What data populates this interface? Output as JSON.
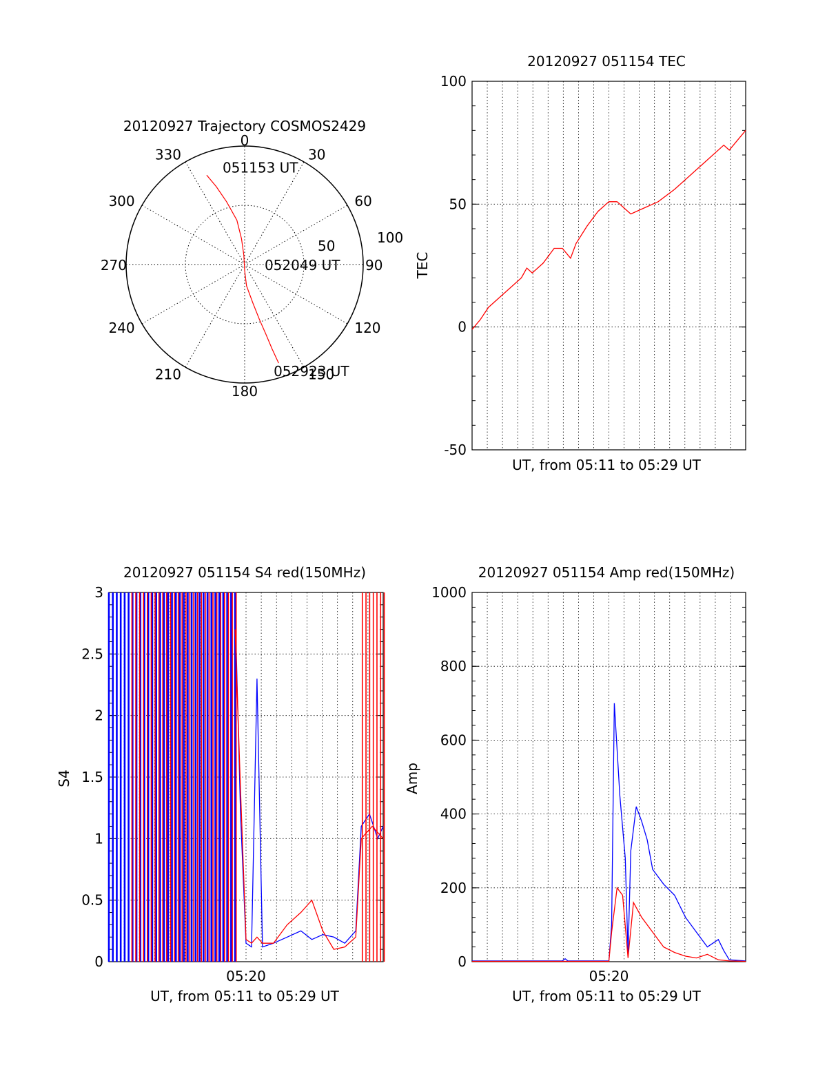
{
  "colors": {
    "red": "#ff0000",
    "blue": "#0000ff",
    "axis": "#000000",
    "grid": "#000000"
  },
  "chart_data": [
    {
      "id": "trajectory",
      "type": "polar",
      "title": "20120927 Trajectory COSMOS2429",
      "azimuth_labels": [
        "0",
        "30",
        "60",
        "90",
        "120",
        "150",
        "180",
        "210",
        "240",
        "270",
        "300",
        "330"
      ],
      "azimuth_values": [
        0,
        30,
        60,
        90,
        120,
        150,
        180,
        210,
        240,
        270,
        300,
        330
      ],
      "radial_labels": [
        "50",
        "100"
      ],
      "radial_values": [
        50,
        100
      ],
      "grid": true,
      "track": {
        "color": "#ff0000",
        "points": [
          [
            337,
            82
          ],
          [
            340,
            70
          ],
          [
            344,
            55
          ],
          [
            350,
            38
          ],
          [
            353,
            22
          ],
          [
            355,
            8
          ],
          [
            180,
            5
          ],
          [
            175,
            18
          ],
          [
            168,
            33
          ],
          [
            165,
            48
          ],
          [
            163,
            62
          ],
          [
            162,
            75
          ],
          [
            161,
            88
          ]
        ]
      },
      "annotations": [
        {
          "text": "051153 UT",
          "az": 348,
          "el": 84
        },
        {
          "text": "052049 UT",
          "az": 90,
          "el": 18
        },
        {
          "text": "052923 UT",
          "az": 164,
          "el": 93
        }
      ]
    },
    {
      "id": "tec",
      "type": "line",
      "title": "20120927 051154 TEC",
      "xlabel": "UT, from 05:11 to 05:29 UT",
      "ylabel": "TEC",
      "xlim": [
        0,
        1
      ],
      "ylim": [
        -50,
        100
      ],
      "yticks": [
        "-50",
        "0",
        "50",
        "100"
      ],
      "ytick_values": [
        -50,
        0,
        50,
        100
      ],
      "xticklabels": [],
      "grid": true,
      "series": [
        {
          "color": "#ff0000",
          "points": [
            [
              0.0,
              -1
            ],
            [
              0.03,
              3
            ],
            [
              0.06,
              8
            ],
            [
              0.1,
              12
            ],
            [
              0.14,
              16
            ],
            [
              0.18,
              20
            ],
            [
              0.2,
              24
            ],
            [
              0.22,
              22
            ],
            [
              0.26,
              26
            ],
            [
              0.3,
              32
            ],
            [
              0.33,
              32
            ],
            [
              0.36,
              28
            ],
            [
              0.38,
              34
            ],
            [
              0.42,
              41
            ],
            [
              0.46,
              47
            ],
            [
              0.5,
              51
            ],
            [
              0.53,
              51
            ],
            [
              0.56,
              48
            ],
            [
              0.58,
              46
            ],
            [
              0.62,
              48
            ],
            [
              0.68,
              51
            ],
            [
              0.74,
              56
            ],
            [
              0.8,
              62
            ],
            [
              0.86,
              68
            ],
            [
              0.92,
              74
            ],
            [
              0.94,
              72
            ],
            [
              0.97,
              76
            ],
            [
              1.0,
              80
            ]
          ]
        }
      ]
    },
    {
      "id": "s4",
      "type": "line",
      "title": "20120927 051154 S4 red(150MHz)",
      "xlabel": "UT, from 05:11 to 05:29 UT",
      "ylabel": "S4",
      "xlim": [
        0,
        1
      ],
      "ylim": [
        0,
        3
      ],
      "yticks": [
        "0",
        "0.5",
        "1",
        "1.5",
        "2",
        "2.5",
        "3"
      ],
      "ytick_values": [
        0,
        0.5,
        1,
        1.5,
        2,
        2.5,
        3
      ],
      "xticklabels": [
        "05:20"
      ],
      "xtick_values": [
        0.5
      ],
      "grid": true,
      "series": [
        {
          "name_hidden": "",
          "color": "#0000ff",
          "spikes": [
            [
              0.0,
              0.46
            ]
          ],
          "points": [
            [
              0.46,
              2.9
            ],
            [
              0.48,
              1.2
            ],
            [
              0.5,
              0.15
            ],
            [
              0.52,
              0.12
            ],
            [
              0.54,
              2.3
            ],
            [
              0.56,
              0.12
            ],
            [
              0.6,
              0.15
            ],
            [
              0.65,
              0.2
            ],
            [
              0.7,
              0.25
            ],
            [
              0.74,
              0.18
            ],
            [
              0.78,
              0.22
            ],
            [
              0.82,
              0.2
            ],
            [
              0.86,
              0.15
            ],
            [
              0.9,
              0.25
            ],
            [
              0.92,
              1.1
            ],
            [
              0.95,
              1.2
            ],
            [
              0.98,
              1.0
            ],
            [
              1.0,
              1.1
            ]
          ]
        },
        {
          "color": "#ff0000",
          "spikes": [
            [
              0.08,
              0.46
            ],
            [
              0.92,
              1.0
            ]
          ],
          "points": [
            [
              0.46,
              2.7
            ],
            [
              0.48,
              1.4
            ],
            [
              0.5,
              0.18
            ],
            [
              0.52,
              0.15
            ],
            [
              0.54,
              0.2
            ],
            [
              0.56,
              0.15
            ],
            [
              0.6,
              0.15
            ],
            [
              0.65,
              0.3
            ],
            [
              0.7,
              0.4
            ],
            [
              0.74,
              0.5
            ],
            [
              0.78,
              0.25
            ],
            [
              0.82,
              0.1
            ],
            [
              0.86,
              0.12
            ],
            [
              0.9,
              0.2
            ],
            [
              0.92,
              1.0
            ],
            [
              0.96,
              1.1
            ],
            [
              1.0,
              1.0
            ]
          ]
        }
      ]
    },
    {
      "id": "amp",
      "type": "line",
      "title": "20120927 051154 Amp red(150MHz)",
      "xlabel": "UT, from 05:11 to 05:29 UT",
      "ylabel": "Amp",
      "xlim": [
        0,
        1
      ],
      "ylim": [
        0,
        1000
      ],
      "yticks": [
        "0",
        "200",
        "400",
        "600",
        "800",
        "1000"
      ],
      "ytick_values": [
        0,
        200,
        400,
        600,
        800,
        1000
      ],
      "xticklabels": [
        "05:20"
      ],
      "xtick_values": [
        0.5
      ],
      "grid": true,
      "series": [
        {
          "color": "#0000ff",
          "points": [
            [
              0.0,
              2
            ],
            [
              0.33,
              2
            ],
            [
              0.34,
              8
            ],
            [
              0.35,
              2
            ],
            [
              0.5,
              2
            ],
            [
              0.51,
              100
            ],
            [
              0.52,
              700
            ],
            [
              0.54,
              450
            ],
            [
              0.56,
              280
            ],
            [
              0.57,
              20
            ],
            [
              0.58,
              300
            ],
            [
              0.6,
              420
            ],
            [
              0.62,
              380
            ],
            [
              0.64,
              330
            ],
            [
              0.66,
              250
            ],
            [
              0.7,
              210
            ],
            [
              0.74,
              180
            ],
            [
              0.78,
              120
            ],
            [
              0.82,
              80
            ],
            [
              0.86,
              40
            ],
            [
              0.9,
              60
            ],
            [
              0.92,
              30
            ],
            [
              0.94,
              5
            ],
            [
              1.0,
              2
            ]
          ]
        },
        {
          "color": "#ff0000",
          "points": [
            [
              0.0,
              1
            ],
            [
              0.5,
              1
            ],
            [
              0.51,
              80
            ],
            [
              0.53,
              200
            ],
            [
              0.55,
              180
            ],
            [
              0.57,
              10
            ],
            [
              0.59,
              160
            ],
            [
              0.62,
              120
            ],
            [
              0.66,
              80
            ],
            [
              0.7,
              40
            ],
            [
              0.74,
              25
            ],
            [
              0.78,
              15
            ],
            [
              0.82,
              10
            ],
            [
              0.86,
              20
            ],
            [
              0.9,
              5
            ],
            [
              0.94,
              2
            ],
            [
              1.0,
              1
            ]
          ]
        }
      ]
    }
  ]
}
